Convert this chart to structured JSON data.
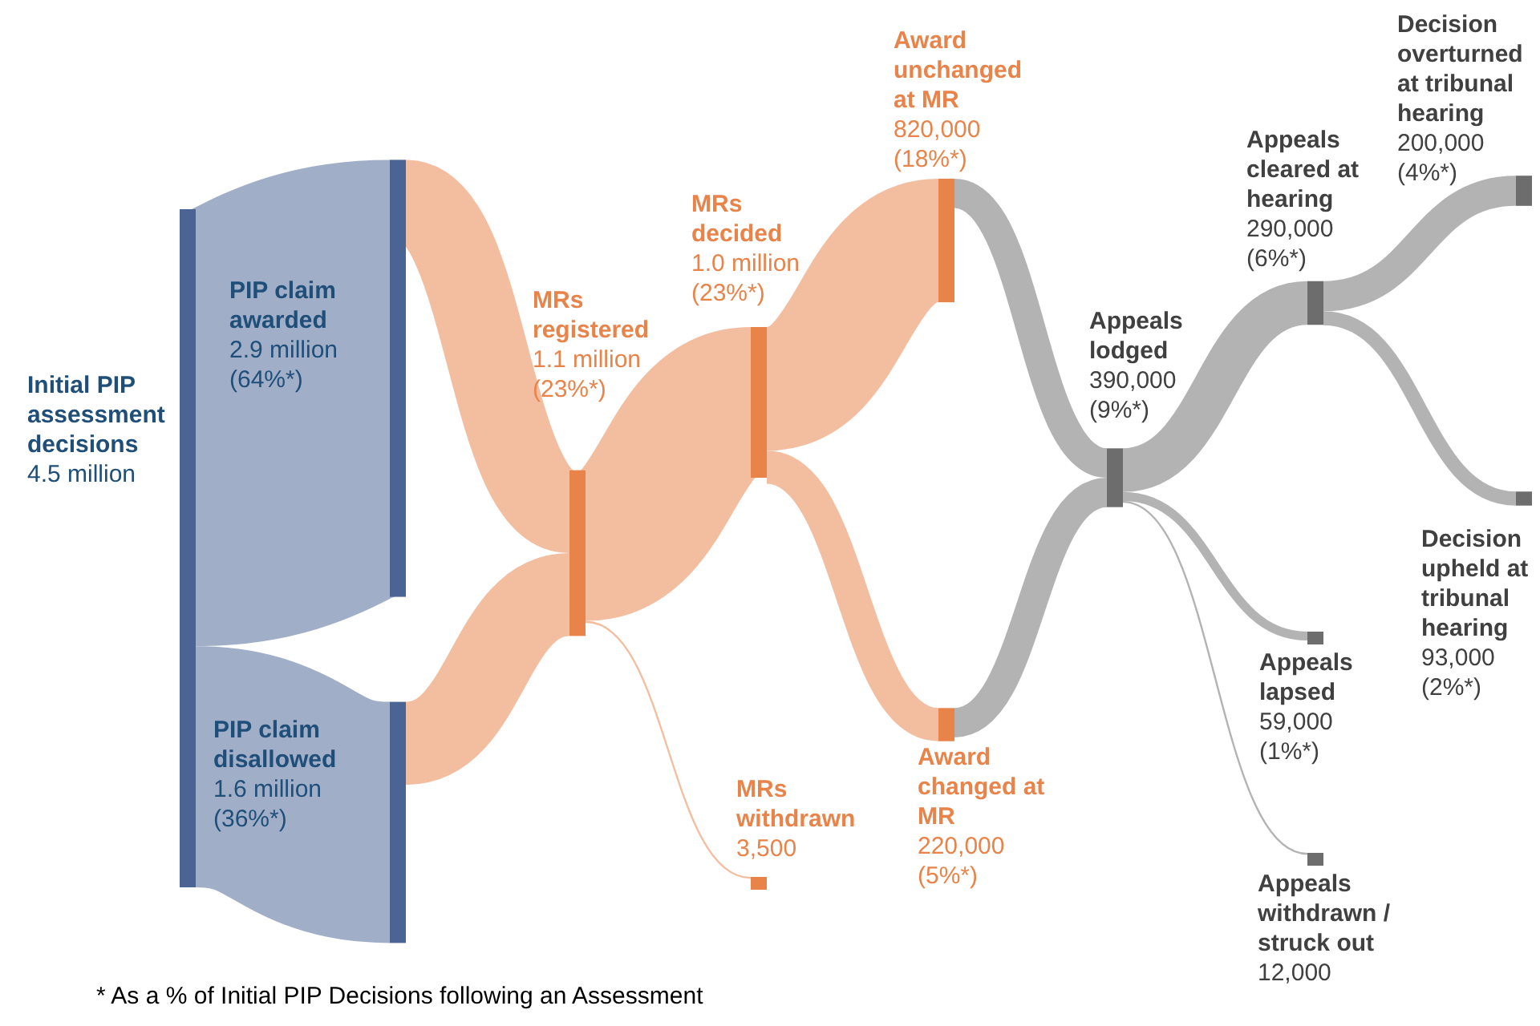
{
  "chart_data": {
    "type": "other",
    "categories": [
      "Initial PIP assessment decisions",
      "PIP claim awarded",
      "PIP claim disallowed",
      "MRs registered",
      "MRs decided",
      "MRs withdrawn",
      "Award unchanged at MR",
      "Award changed at MR",
      "Appeals lodged",
      "Appeals cleared at hearing",
      "Appeals lapsed",
      "Appeals withdrawn / struck out",
      "Decision overturned at tribunal hearing",
      "Decision upheld at tribunal hearing"
    ],
    "values": [
      4500000,
      2900000,
      1600000,
      1100000,
      1000000,
      3500,
      820000,
      220000,
      390000,
      290000,
      59000,
      12000,
      200000,
      93000
    ],
    "value_labels": [
      "4.5 million",
      "2.9 million",
      "1.6 million",
      "1.1 million",
      "1.0 million",
      "3,500",
      "820,000",
      "220,000",
      "390,000",
      "290,000",
      "59,000",
      "12,000",
      "200,000",
      "93,000"
    ],
    "colors": [
      "#4a6494",
      "#4a6494",
      "#4a6494",
      "#e8834a",
      "#e8834a",
      "#e8834a",
      "#e8834a",
      "#e8834a",
      "#6d6d6d",
      "#6d6d6d",
      "#6d6d6d",
      "#6d6d6d",
      "#6d6d6d",
      "#6d6d6d"
    ],
    "annotations": [
      {
        "text": "(64%*)",
        "x": "PIP claim awarded"
      },
      {
        "text": "(36%*)",
        "x": "PIP claim disallowed"
      },
      {
        "text": "(23%*)",
        "x": "MRs registered"
      },
      {
        "text": "(23%*)",
        "x": "MRs decided"
      },
      {
        "text": "(18%*)",
        "x": "Award unchanged at MR"
      },
      {
        "text": "(5%*)",
        "x": "Award changed at MR"
      },
      {
        "text": "(9%*)",
        "x": "Appeals lodged"
      },
      {
        "text": "(6%*)",
        "x": "Appeals cleared at hearing"
      },
      {
        "text": "(1%*)",
        "x": "Appeals lapsed"
      },
      {
        "text": "(4%*)",
        "x": "Decision overturned at tribunal hearing"
      },
      {
        "text": "(2%*)",
        "x": "Decision upheld at tribunal hearing"
      },
      "* As a % of Initial PIP Decisions following an Assessment"
    ]
  }
}
